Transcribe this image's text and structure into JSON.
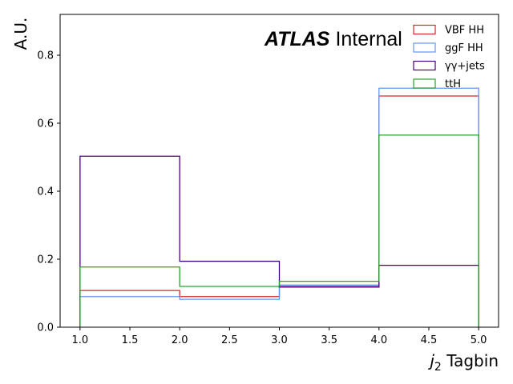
{
  "chart_data": {
    "type": "histogram",
    "title": "",
    "xlabel": "$j_2$ Tagbin",
    "xlabel_parts": {
      "symbol": "j",
      "subscript": "2",
      "text": "Tagbin"
    },
    "ylabel": "A.U.",
    "xlim": [
      0.8,
      5.2
    ],
    "ylim": [
      0.0,
      0.92
    ],
    "xticks": [
      1.0,
      1.5,
      2.0,
      2.5,
      3.0,
      3.5,
      4.0,
      4.5,
      5.0
    ],
    "xtick_labels": [
      "1.0",
      "1.5",
      "2.0",
      "2.5",
      "3.0",
      "3.5",
      "4.0",
      "4.5",
      "5.0"
    ],
    "yticks": [
      0.0,
      0.2,
      0.4,
      0.6,
      0.8
    ],
    "ytick_labels": [
      "0.0",
      "0.2",
      "0.4",
      "0.6",
      "0.8"
    ],
    "bin_edges": [
      1.0,
      2.0,
      3.0,
      4.0,
      5.0
    ],
    "series": [
      {
        "name": "VBF HH",
        "color": "#d62728",
        "values": [
          0.108,
          0.09,
          0.12,
          0.68
        ]
      },
      {
        "name": "ggF HH",
        "color": "#6495ed",
        "values": [
          0.09,
          0.082,
          0.124,
          0.703
        ]
      },
      {
        "name": "γγ+jets",
        "color": "#4b0082",
        "values": [
          0.503,
          0.194,
          0.118,
          0.182
        ]
      },
      {
        "name": "ttH",
        "color": "#2ca02c",
        "values": [
          0.177,
          0.12,
          0.135,
          0.565
        ]
      }
    ],
    "annotation": {
      "bold": "ATLAS",
      "normal": "Internal"
    },
    "legend_placement": "top-right",
    "grid": false
  }
}
